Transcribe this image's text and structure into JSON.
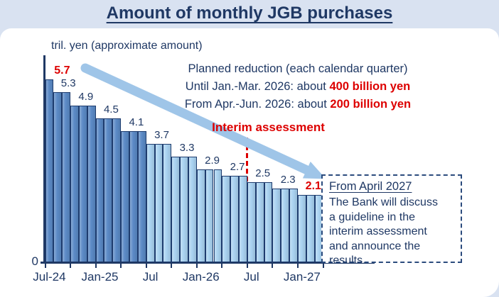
{
  "header": {
    "title": "Amount of monthly JGB purchases"
  },
  "colors": {
    "navy": "#1f3864",
    "red": "#dd0000",
    "band-bg": "#d9e2f1",
    "card-bg": "#ffffff",
    "bar-actual": "#5b8ac6",
    "bar-planned": "#a9d2f0",
    "bar-border": "#1e3c6e",
    "arrow-blue": "#9fc5e8",
    "axis": "#1f3864"
  },
  "annotations": {
    "planned_title": "Planned reduction (each calendar quarter)",
    "until_line_prefix": "Until Jan.-Mar. 2026: about",
    "until_line_value": "400 billion yen",
    "from_line_prefix": "From Apr.-Jun. 2026: about",
    "from_line_value": "200 billion yen"
  },
  "info_box": {
    "heading": "From April 2027",
    "body_lines": [
      "The Bank will discuss",
      "a guideline in the",
      "interim assessment",
      "and announce the",
      "results."
    ]
  },
  "chart_data": {
    "type": "bar",
    "title": "Amount of monthly JGB purchases",
    "ylabel": "tril. yen (approximate amount)",
    "y_origin_label": "0",
    "unit": "trillion yen per month",
    "ylim": [
      0,
      6.3
    ],
    "grid": false,
    "x_axis_labels": [
      {
        "text": "Jul-24",
        "month": 0
      },
      {
        "text": "Jan-25",
        "month": 6
      },
      {
        "text": "Jul",
        "month": 12
      },
      {
        "text": "Jan-26",
        "month": 18
      },
      {
        "text": "Jul",
        "month": 24
      },
      {
        "text": "Jan-27",
        "month": 30
      }
    ],
    "groups": [
      {
        "value": 5.7,
        "months": 1,
        "phase": "actual",
        "highlight": true
      },
      {
        "value": 5.3,
        "months": 2,
        "phase": "actual"
      },
      {
        "value": 4.9,
        "months": 3,
        "phase": "actual"
      },
      {
        "value": 4.5,
        "months": 3,
        "phase": "actual"
      },
      {
        "value": 4.1,
        "months": 3,
        "phase": "actual"
      },
      {
        "value": 3.7,
        "months": 3,
        "phase": "planned"
      },
      {
        "value": 3.3,
        "months": 3,
        "phase": "planned"
      },
      {
        "value": 2.9,
        "months": 3,
        "phase": "planned"
      },
      {
        "value": 2.7,
        "months": 3,
        "phase": "planned"
      },
      {
        "value": 2.5,
        "months": 3,
        "phase": "planned"
      },
      {
        "value": 2.3,
        "months": 3,
        "phase": "planned"
      },
      {
        "value": 2.1,
        "months": 3,
        "phase": "planned",
        "highlight": true
      }
    ],
    "marker": {
      "label": "Interim assessment",
      "month": 24
    }
  }
}
